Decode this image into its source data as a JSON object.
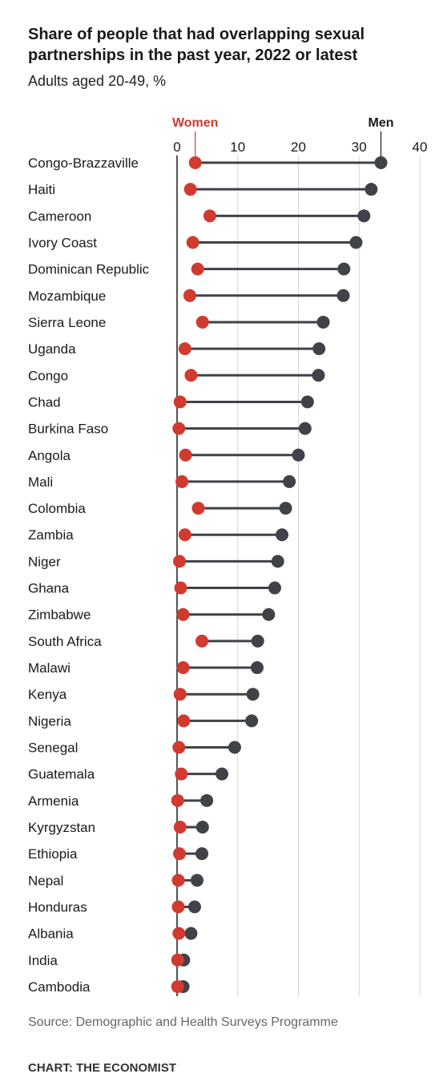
{
  "header": {
    "title": "Share of people that had overlapping sexual partnerships in the past year, 2022 or latest",
    "subtitle": "Adults aged 20-49, %"
  },
  "footer": {
    "source": "Source: Demographic and Health Surveys Programme",
    "credit": "CHART: THE ECONOMIST"
  },
  "colors": {
    "women": "#d13a2e",
    "men": "#3f4247",
    "grid": "#d6d6d6",
    "axis": "#1a1a1a"
  },
  "chart_data": {
    "type": "dot",
    "title": "Share of people that had overlapping sexual partnerships in the past year, 2022 or latest",
    "subtitle": "Adults aged 20-49, %",
    "xlim": [
      0,
      40
    ],
    "xticks": [
      0,
      10,
      20,
      30,
      40
    ],
    "grid": true,
    "legend": [
      "Women",
      "Men"
    ],
    "categories": [
      "Congo-Brazzaville",
      "Haiti",
      "Cameroon",
      "Ivory Coast",
      "Dominican Republic",
      "Mozambique",
      "Sierra Leone",
      "Uganda",
      "Congo",
      "Chad",
      "Burkina Faso",
      "Angola",
      "Mali",
      "Colombia",
      "Zambia",
      "Niger",
      "Ghana",
      "Zimbabwe",
      "South Africa",
      "Malawi",
      "Kenya",
      "Nigeria",
      "Senegal",
      "Guatemala",
      "Armenia",
      "Kyrgyzstan",
      "Ethiopia",
      "Nepal",
      "Honduras",
      "Albania",
      "India",
      "Cambodia"
    ],
    "series": [
      {
        "name": "Women",
        "values": [
          3.0,
          2.2,
          5.4,
          2.6,
          3.4,
          2.1,
          4.2,
          1.3,
          2.3,
          0.5,
          0.3,
          1.4,
          0.8,
          3.5,
          1.3,
          0.4,
          0.6,
          1.0,
          4.1,
          1.0,
          0.5,
          1.1,
          0.3,
          0.7,
          0.1,
          0.5,
          0.4,
          0.2,
          0.2,
          0.3,
          0.1,
          0.1
        ]
      },
      {
        "name": "Men",
        "values": [
          33.6,
          32.0,
          30.8,
          29.5,
          27.5,
          27.4,
          24.1,
          23.4,
          23.3,
          21.5,
          21.1,
          20.0,
          18.5,
          17.9,
          17.3,
          16.6,
          16.1,
          15.1,
          13.3,
          13.2,
          12.5,
          12.3,
          9.5,
          7.4,
          4.9,
          4.2,
          4.1,
          3.3,
          2.9,
          2.3,
          1.1,
          1.0
        ]
      }
    ]
  }
}
